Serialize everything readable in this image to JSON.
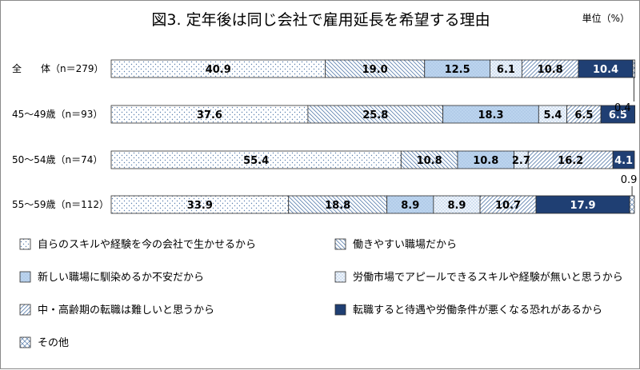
{
  "chart_data": {
    "type": "bar",
    "orientation": "horizontal",
    "stacked": true,
    "title": "図3. 定年後は同じ会社で雇用延長を希望する理由",
    "unit_label": "単位（%）",
    "xlim": [
      0,
      100
    ],
    "grid": false,
    "legend_position": "bottom",
    "categories": [
      "全　　体（n＝279）",
      "45〜49歳（n＝93）",
      "50〜54歳（n＝74）",
      "55〜59歳（n＝112）"
    ],
    "series": [
      {
        "name": "自らのスキルや経験を今の会社で生かせるから",
        "values": [
          40.9,
          37.6,
          55.4,
          33.9
        ],
        "pattern": "dots",
        "label_color": "#000000"
      },
      {
        "name": "働きやすい職場だから",
        "values": [
          19.0,
          25.8,
          10.8,
          18.8
        ],
        "pattern": "backslash",
        "label_color": "#000000"
      },
      {
        "name": "新しい職場に馴染めるか不安だから",
        "values": [
          12.5,
          18.3,
          10.8,
          8.9
        ],
        "pattern": "solid-light",
        "label_color": "#000000"
      },
      {
        "name": "労働市場でアピールできるスキルや経験が無いと思うから",
        "values": [
          6.1,
          5.4,
          2.7,
          8.9
        ],
        "pattern": "fine-dots",
        "label_color": "#000000"
      },
      {
        "name": "中・高齢期の転職は難しいと思うから",
        "values": [
          10.8,
          6.5,
          16.2,
          10.7
        ],
        "pattern": "slash",
        "label_color": "#000000"
      },
      {
        "name": "転職すると待遇や労働条件が悪くなる恐れがあるから",
        "values": [
          10.4,
          6.5,
          4.1,
          17.9
        ],
        "pattern": "dark",
        "label_color": "#ffffff"
      },
      {
        "name": "その他",
        "values": [
          0.4,
          0,
          0,
          0.9
        ],
        "pattern": "diamond",
        "label_color": "#000000"
      }
    ],
    "bar_labels": [
      [
        "40.9",
        "19.0",
        "12.5",
        "6.1",
        "10.8",
        "10.4",
        ""
      ],
      [
        "37.6",
        "25.8",
        "18.3",
        "5.4",
        "6.5",
        "6.5",
        ""
      ],
      [
        "55.4",
        "10.8",
        "10.8",
        "2.7",
        "16.2",
        "4.1",
        ""
      ],
      [
        "33.9",
        "18.8",
        "8.9",
        "8.9",
        "10.7",
        "17.9",
        ""
      ]
    ],
    "callouts": [
      {
        "row": 0,
        "series": 6,
        "text": "0.4"
      },
      {
        "row": 3,
        "series": 6,
        "text": "0.9"
      }
    ],
    "colors": {
      "dots": "#5b7fae",
      "hatch": "#5b7fae",
      "light_fill": "#bcd4ee",
      "dark_fill": "#1f3f73",
      "stroke": "#2b2b2b"
    }
  }
}
